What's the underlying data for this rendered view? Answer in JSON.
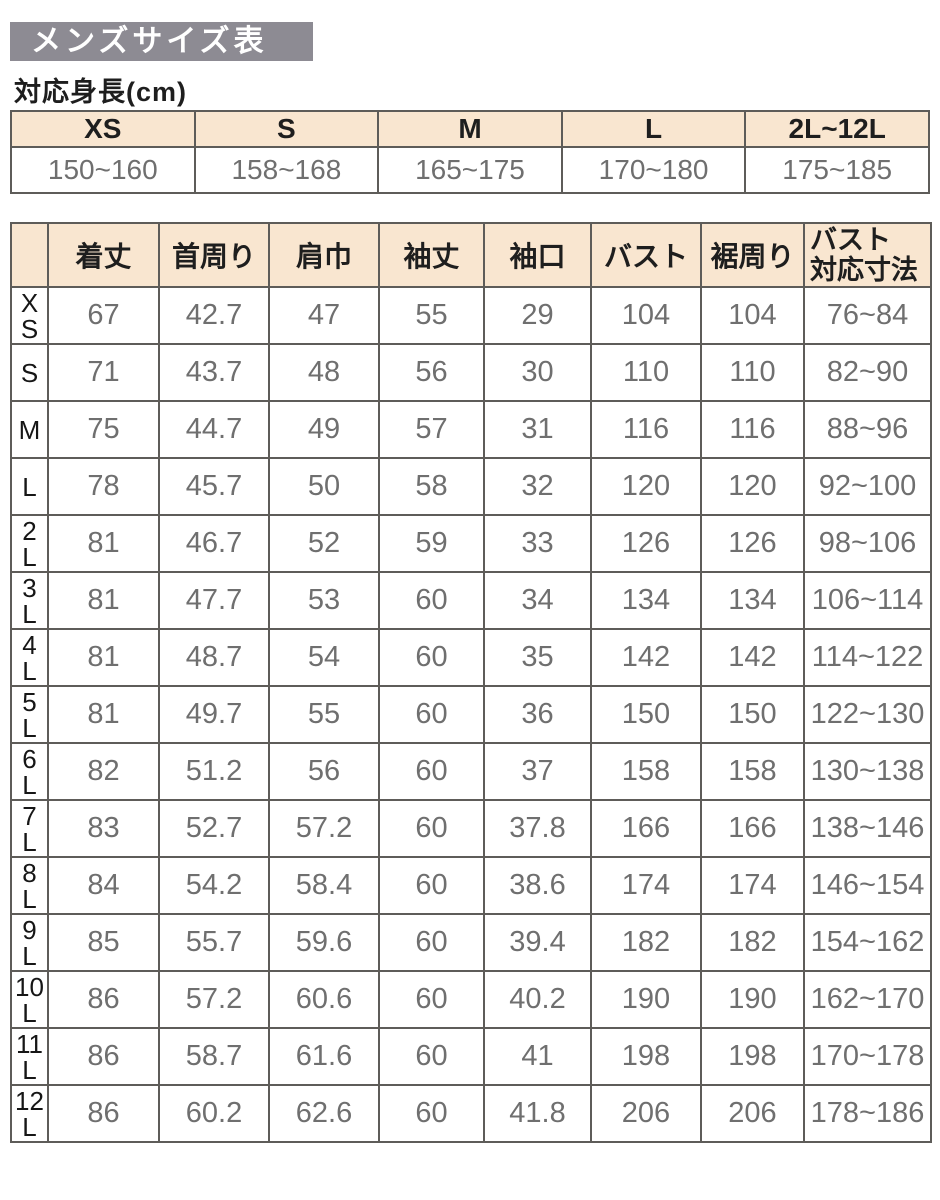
{
  "page_title": "メンズサイズ表",
  "height_section": {
    "label": "対応身長(cm)",
    "columns": [
      {
        "size": "XS",
        "range": "150~160"
      },
      {
        "size": "S",
        "range": "158~168"
      },
      {
        "size": "M",
        "range": "165~175"
      },
      {
        "size": "L",
        "range": "170~180"
      },
      {
        "size": "2L~12L",
        "range": "175~185"
      }
    ]
  },
  "size_table": {
    "column_headers": [
      "着丈",
      "首周り",
      "肩巾",
      "袖丈",
      "袖口",
      "バスト",
      "裾周り"
    ],
    "bust_header_lines": [
      "バスト",
      "対応寸法"
    ],
    "rows": [
      {
        "size": "XS",
        "size_lines": [
          "X",
          "S"
        ],
        "values": [
          "67",
          "42.7",
          "47",
          "55",
          "29",
          "104",
          "104",
          "76~84"
        ]
      },
      {
        "size": "S",
        "size_lines": [
          "S"
        ],
        "values": [
          "71",
          "43.7",
          "48",
          "56",
          "30",
          "110",
          "110",
          "82~90"
        ]
      },
      {
        "size": "M",
        "size_lines": [
          "M"
        ],
        "values": [
          "75",
          "44.7",
          "49",
          "57",
          "31",
          "116",
          "116",
          "88~96"
        ]
      },
      {
        "size": "L",
        "size_lines": [
          "L"
        ],
        "values": [
          "78",
          "45.7",
          "50",
          "58",
          "32",
          "120",
          "120",
          "92~100"
        ]
      },
      {
        "size": "2L",
        "size_lines": [
          "2",
          "L"
        ],
        "values": [
          "81",
          "46.7",
          "52",
          "59",
          "33",
          "126",
          "126",
          "98~106"
        ]
      },
      {
        "size": "3L",
        "size_lines": [
          "3",
          "L"
        ],
        "values": [
          "81",
          "47.7",
          "53",
          "60",
          "34",
          "134",
          "134",
          "106~114"
        ]
      },
      {
        "size": "4L",
        "size_lines": [
          "4",
          "L"
        ],
        "values": [
          "81",
          "48.7",
          "54",
          "60",
          "35",
          "142",
          "142",
          "114~122"
        ]
      },
      {
        "size": "5L",
        "size_lines": [
          "5",
          "L"
        ],
        "values": [
          "81",
          "49.7",
          "55",
          "60",
          "36",
          "150",
          "150",
          "122~130"
        ]
      },
      {
        "size": "6L",
        "size_lines": [
          "6",
          "L"
        ],
        "values": [
          "82",
          "51.2",
          "56",
          "60",
          "37",
          "158",
          "158",
          "130~138"
        ]
      },
      {
        "size": "7L",
        "size_lines": [
          "7",
          "L"
        ],
        "values": [
          "83",
          "52.7",
          "57.2",
          "60",
          "37.8",
          "166",
          "166",
          "138~146"
        ]
      },
      {
        "size": "8L",
        "size_lines": [
          "8",
          "L"
        ],
        "values": [
          "84",
          "54.2",
          "58.4",
          "60",
          "38.6",
          "174",
          "174",
          "146~154"
        ]
      },
      {
        "size": "9L",
        "size_lines": [
          "9",
          "L"
        ],
        "values": [
          "85",
          "55.7",
          "59.6",
          "60",
          "39.4",
          "182",
          "182",
          "154~162"
        ]
      },
      {
        "size": "10L",
        "size_lines": [
          "10",
          "L"
        ],
        "values": [
          "86",
          "57.2",
          "60.6",
          "60",
          "40.2",
          "190",
          "190",
          "162~170"
        ]
      },
      {
        "size": "11L",
        "size_lines": [
          "11",
          "L"
        ],
        "values": [
          "86",
          "58.7",
          "61.6",
          "60",
          "41",
          "198",
          "198",
          "170~178"
        ]
      },
      {
        "size": "12L",
        "size_lines": [
          "12",
          "L"
        ],
        "values": [
          "86",
          "60.2",
          "62.6",
          "60",
          "41.8",
          "206",
          "206",
          "178~186"
        ]
      }
    ]
  },
  "colors": {
    "title_bar_bg": "#8d8b93",
    "title_text": "#ffffff",
    "table_header_bg": "#f9e6d0",
    "table_border": "#5e5c59",
    "value_text": "#6f6f6f",
    "heading_text": "#1e1e1e"
  }
}
